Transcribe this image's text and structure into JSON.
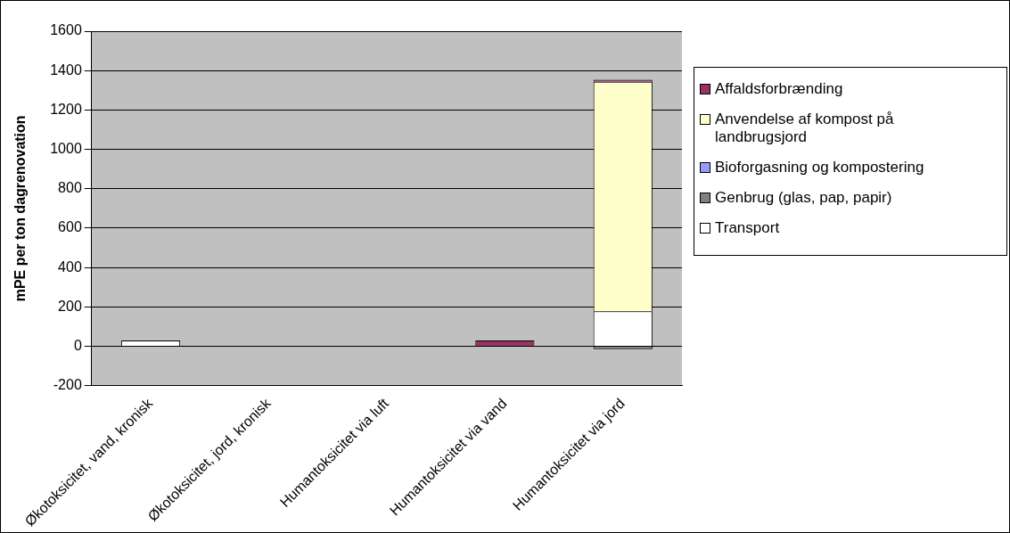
{
  "chart_data": {
    "type": "bar",
    "ylabel": "mPE per ton dagrenovation",
    "stacked": true,
    "categories": [
      "Økotoksicitet, vand, kronisk",
      "Økotoksicitet, jord, kronisk",
      "Humantoksicitet via luft",
      "Humantoksicitet via vand",
      "Humantoksicitet via jord"
    ],
    "series": [
      {
        "name": "Transport",
        "color": "#ffffff",
        "values": [
          30,
          null,
          null,
          null,
          178
        ]
      },
      {
        "name": "Genbrug (glas, pap, papir)",
        "color": "#808080",
        "values": [
          null,
          null,
          null,
          null,
          -15
        ]
      },
      {
        "name": "Bioforgasning og kompostering",
        "color": "#9999ff",
        "values": [
          null,
          null,
          null,
          null,
          null
        ]
      },
      {
        "name": "Anvendelse af kompost på landbrugsjord",
        "color": "#ffffcc",
        "values": [
          null,
          null,
          null,
          null,
          1165
        ]
      },
      {
        "name": "Affaldsforbrænding",
        "color": "#993366",
        "values": [
          null,
          null,
          null,
          30,
          10
        ]
      }
    ],
    "ylim": [
      -200,
      1600
    ],
    "yticks": [
      -200,
      0,
      200,
      400,
      600,
      800,
      1000,
      1200,
      1400,
      1600
    ],
    "grid": "y",
    "legend": "right"
  }
}
